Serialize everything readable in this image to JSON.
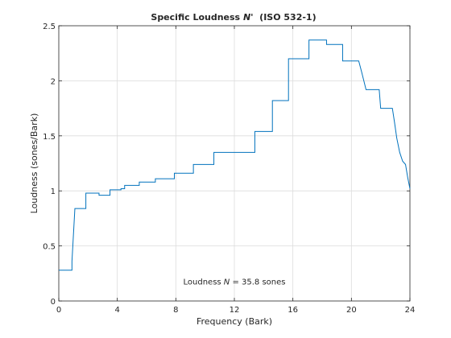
{
  "chart_data": {
    "type": "line",
    "title": "Specific Loudness N'  (ISO 532-1)",
    "title_prefix": "Specific Loudness ",
    "title_symbol": "N'",
    "title_suffix": "  (ISO 532-1)",
    "xlabel": "Frequency (Bark)",
    "ylabel": "Loudness (sones/Bark)",
    "xlim": [
      0,
      24
    ],
    "ylim": [
      0,
      2.5
    ],
    "xticks": [
      0,
      4,
      8,
      12,
      16,
      20,
      24
    ],
    "yticks": [
      0,
      0.5,
      1,
      1.5,
      2,
      2.5
    ],
    "xtick_labels": [
      "0",
      "4",
      "8",
      "12",
      "16",
      "20",
      "24"
    ],
    "ytick_labels": [
      "0",
      "0.5",
      "1",
      "1.5",
      "2",
      "2.5"
    ],
    "grid": true,
    "line_color": "#0072BD",
    "annotation": {
      "prefix": "Loudness ",
      "symbol": "N",
      "suffix": " = 35.8 sones",
      "x": 12,
      "y": 0.15
    },
    "series": [
      {
        "x": [
          0,
          0.9,
          0.9,
          1.1,
          1.1,
          1.85,
          1.85,
          2.75,
          2.75,
          3.5,
          3.5,
          4.25,
          4.25,
          4.5,
          4.5,
          5.5,
          5.5,
          6.6,
          6.6,
          7.9,
          7.9,
          9.2,
          9.2,
          10.6,
          10.6,
          12.1,
          12.1,
          13.4,
          13.4,
          14.6,
          14.6,
          15.7,
          15.7,
          17.1,
          17.1,
          18.3,
          18.3,
          19.4,
          19.4,
          20.5,
          20.7,
          21.0,
          21.1,
          21.9,
          22.0,
          22.8,
          22.95,
          23.1,
          23.3,
          23.5,
          23.7,
          23.85,
          24.0
        ],
        "y": [
          0.28,
          0.28,
          0.36,
          0.84,
          0.84,
          0.84,
          0.98,
          0.98,
          0.96,
          0.96,
          1.01,
          1.01,
          1.02,
          1.02,
          1.05,
          1.05,
          1.08,
          1.08,
          1.11,
          1.11,
          1.16,
          1.16,
          1.24,
          1.24,
          1.35,
          1.35,
          1.35,
          1.35,
          1.54,
          1.54,
          1.82,
          1.82,
          2.2,
          2.2,
          2.37,
          2.37,
          2.33,
          2.33,
          2.18,
          2.18,
          2.08,
          1.92,
          1.92,
          1.92,
          1.75,
          1.75,
          1.62,
          1.48,
          1.35,
          1.27,
          1.24,
          1.12,
          1.02
        ]
      }
    ]
  }
}
